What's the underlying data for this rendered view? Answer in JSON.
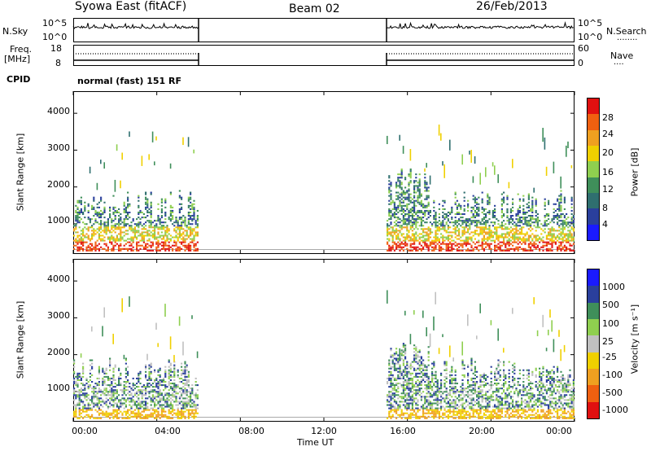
{
  "header": {
    "station": "Syowa East (fitACF)",
    "beam": "Beam 02",
    "date": "26/Feb/2013"
  },
  "summary": {
    "nsky_label": "N.Sky",
    "nsearch_label": "N.Search",
    "nsky_ticks": [
      "10^5",
      "10^0"
    ],
    "nsearch_ticks": [
      "10^5",
      "10^0"
    ],
    "freq_label": "Freq.",
    "freq_unit": "[MHz]",
    "freq_ticks": [
      "18",
      "8"
    ],
    "nave_label": "Nave",
    "nave_ticks": [
      "60",
      "0"
    ],
    "cpid_label": "CPID",
    "cpid_value": "normal (fast) 151 RF"
  },
  "axes": {
    "ylabel": "Slant Range [km]",
    "xlabel": "Time UT",
    "yticks": [
      "4000",
      "3000",
      "2000",
      "1000"
    ],
    "ytick_values": [
      4000,
      3000,
      2000,
      1000
    ],
    "xticks": [
      "00:00",
      "04:00",
      "08:00",
      "12:00",
      "16:00",
      "20:00",
      "00:00"
    ],
    "xtick_values": [
      0,
      4,
      8,
      12,
      16,
      20,
      24
    ]
  },
  "colors": {
    "power": [
      "#1a1aff",
      "#2a3f9c",
      "#2f6f6f",
      "#3f8f5a",
      "#8fcf4f",
      "#f0d000",
      "#f0a020",
      "#f06010",
      "#e01010"
    ],
    "velocity": [
      "#e01010",
      "#f06010",
      "#f0a020",
      "#f0d000",
      "#c0c0c0",
      "#8fcf4f",
      "#3f8f5a",
      "#2a3f9c",
      "#1a1aff"
    ]
  },
  "chart_data": [
    {
      "type": "heatmap",
      "title": "Power",
      "xlabel": "Time UT",
      "ylabel": "Slant Range [km]",
      "colorbar_label": "Power [dB]",
      "colorbar_ticks": [
        "28",
        "24",
        "20",
        "16",
        "12",
        "8",
        "4"
      ],
      "xlim": [
        0,
        24
      ],
      "ylim": [
        180,
        4600
      ],
      "coverage_hours": [
        [
          0,
          6
        ],
        [
          15,
          24
        ]
      ]
    },
    {
      "type": "heatmap",
      "title": "Velocity",
      "xlabel": "Time UT",
      "ylabel": "Slant Range [km]",
      "colorbar_label": "Velocity [m s⁻¹]",
      "colorbar_ticks": [
        "1000",
        "500",
        "100",
        "25",
        "-25",
        "-100",
        "-500",
        "-1000"
      ],
      "xlim": [
        0,
        24
      ],
      "ylim": [
        180,
        4600
      ],
      "coverage_hours": [
        [
          0,
          6
        ],
        [
          15,
          24
        ]
      ]
    }
  ]
}
